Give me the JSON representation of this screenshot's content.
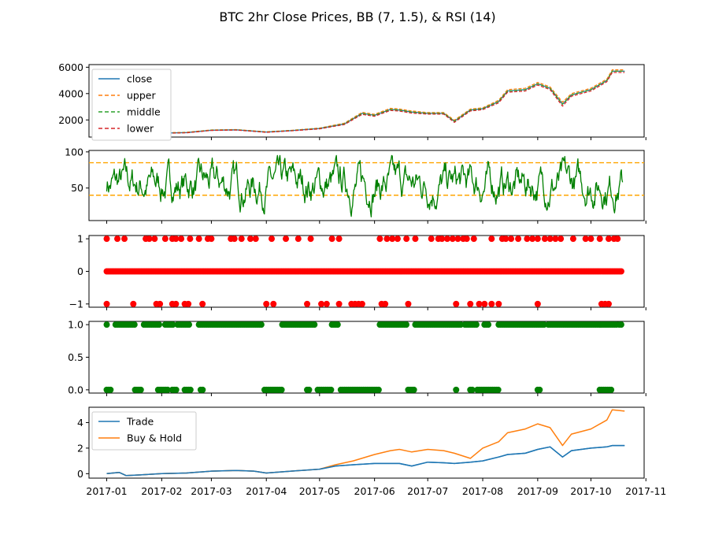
{
  "colors": {
    "close": "#1f77b4",
    "upper": "#ff7f0e",
    "middle": "#2ca02c",
    "lower": "#d62728",
    "rsi": "#008000",
    "threshold": "#ffa500",
    "signal": "#ff0000",
    "position": "#008000",
    "trade": "#1f77b4",
    "buyhold": "#ff7f0e"
  },
  "chart_data": [
    {
      "id": "price",
      "type": "line",
      "title": "BTC 2hr Close Prices, BB (7, 1.5), & RSI (14)",
      "xlim": [
        "2016-12-22",
        "2017-10-31"
      ],
      "ylim": [
        700,
        6200
      ],
      "yticks": [
        2000,
        4000,
        6000
      ],
      "legend": {
        "placement": "top-left",
        "entries": [
          "close",
          "upper",
          "middle",
          "lower"
        ]
      },
      "x": [
        "2017-01-01",
        "2017-01-15",
        "2017-02-01",
        "2017-02-15",
        "2017-03-01",
        "2017-03-15",
        "2017-04-01",
        "2017-04-15",
        "2017-05-01",
        "2017-05-15",
        "2017-05-25",
        "2017-06-01",
        "2017-06-10",
        "2017-06-15",
        "2017-06-22",
        "2017-07-01",
        "2017-07-10",
        "2017-07-16",
        "2017-07-25",
        "2017-08-01",
        "2017-08-10",
        "2017-08-15",
        "2017-08-25",
        "2017-09-01",
        "2017-09-08",
        "2017-09-15",
        "2017-09-20",
        "2017-10-01",
        "2017-10-10",
        "2017-10-13",
        "2017-10-20"
      ],
      "series": [
        {
          "name": "close",
          "values": [
            1000,
            860,
            1000,
            1040,
            1220,
            1250,
            1080,
            1190,
            1350,
            1700,
            2500,
            2350,
            2800,
            2750,
            2600,
            2500,
            2500,
            1900,
            2750,
            2850,
            3400,
            4200,
            4300,
            4750,
            4400,
            3200,
            3900,
            4300,
            5000,
            5700,
            5700
          ]
        },
        {
          "name": "upper",
          "values": [
            1020,
            880,
            1020,
            1060,
            1240,
            1270,
            1100,
            1210,
            1380,
            1750,
            2580,
            2420,
            2880,
            2830,
            2680,
            2560,
            2560,
            1980,
            2820,
            2920,
            3500,
            4300,
            4400,
            4850,
            4500,
            3350,
            4000,
            4400,
            5100,
            5800,
            5800
          ]
        },
        {
          "name": "middle",
          "values": [
            1000,
            860,
            1000,
            1040,
            1220,
            1250,
            1080,
            1190,
            1350,
            1700,
            2500,
            2350,
            2800,
            2750,
            2600,
            2500,
            2500,
            1900,
            2750,
            2850,
            3400,
            4200,
            4300,
            4750,
            4400,
            3200,
            3900,
            4300,
            5000,
            5700,
            5700
          ]
        },
        {
          "name": "lower",
          "values": [
            980,
            840,
            980,
            1020,
            1200,
            1230,
            1060,
            1170,
            1320,
            1650,
            2420,
            2280,
            2720,
            2670,
            2520,
            2440,
            2440,
            1820,
            2680,
            2780,
            3300,
            4100,
            4200,
            4650,
            4300,
            3050,
            3800,
            4200,
            4900,
            5600,
            5600
          ]
        }
      ]
    },
    {
      "id": "rsi",
      "type": "line",
      "xlim": [
        "2016-12-22",
        "2017-10-31"
      ],
      "ylim": [
        5,
        102
      ],
      "yticks": [
        50,
        100
      ],
      "hlines": [
        85,
        40
      ],
      "series": [
        {
          "name": "",
          "style": "oscillating between roughly 10 and 95"
        }
      ]
    },
    {
      "id": "signal",
      "type": "scatter",
      "xlim": [
        "2016-12-22",
        "2017-10-31"
      ],
      "ylim": [
        -1.1,
        1.1
      ],
      "yticks": [
        -1,
        0,
        1
      ],
      "yticklabels": [
        "−1",
        "0",
        "1"
      ],
      "points_up": [
        "2017-01-01",
        "2017-01-07",
        "2017-01-11",
        "2017-01-23",
        "2017-01-25",
        "2017-01-28",
        "2017-02-03",
        "2017-02-07",
        "2017-02-09",
        "2017-02-12",
        "2017-02-17",
        "2017-02-22",
        "2017-02-27",
        "2017-03-01",
        "2017-03-12",
        "2017-03-14",
        "2017-03-18",
        "2017-03-23",
        "2017-03-26",
        "2017-04-04",
        "2017-04-12",
        "2017-04-19",
        "2017-04-26",
        "2017-05-08",
        "2017-05-12",
        "2017-06-04",
        "2017-06-08",
        "2017-06-11",
        "2017-06-14",
        "2017-06-19",
        "2017-06-24",
        "2017-07-03",
        "2017-07-07",
        "2017-07-09",
        "2017-07-12",
        "2017-07-15",
        "2017-07-18",
        "2017-07-21",
        "2017-07-23",
        "2017-07-27",
        "2017-08-06",
        "2017-08-12",
        "2017-08-14",
        "2017-08-17",
        "2017-08-21",
        "2017-08-26",
        "2017-08-29",
        "2017-09-01",
        "2017-09-05",
        "2017-09-08",
        "2017-09-11",
        "2017-09-14",
        "2017-09-21",
        "2017-09-28",
        "2017-10-01",
        "2017-10-06",
        "2017-10-11",
        "2017-10-14",
        "2017-10-16"
      ],
      "points_down": [
        "2017-01-01",
        "2017-01-16",
        "2017-01-29",
        "2017-01-31",
        "2017-02-07",
        "2017-02-09",
        "2017-02-14",
        "2017-02-16",
        "2017-02-24",
        "2017-04-01",
        "2017-04-05",
        "2017-04-24",
        "2017-05-02",
        "2017-05-05",
        "2017-05-12",
        "2017-05-19",
        "2017-05-21",
        "2017-05-23",
        "2017-05-25",
        "2017-06-05",
        "2017-06-07",
        "2017-06-20",
        "2017-07-17",
        "2017-07-25",
        "2017-07-30",
        "2017-08-02",
        "2017-08-06",
        "2017-08-10",
        "2017-09-01",
        "2017-10-07",
        "2017-10-09",
        "2017-10-11"
      ],
      "baseline_value": 0,
      "baseline_range": [
        "2017-01-01",
        "2017-10-19"
      ]
    },
    {
      "id": "position",
      "type": "scatter",
      "xlim": [
        "2016-12-22",
        "2017-10-31"
      ],
      "ylim": [
        -0.05,
        1.05
      ],
      "yticks": [
        0,
        0.5,
        1
      ],
      "yticklabels": [
        "0.0",
        "0.5",
        "1.0"
      ],
      "ones": [
        [
          "2017-01-01",
          "2017-01-02"
        ],
        [
          "2017-01-06",
          "2017-01-17"
        ],
        [
          "2017-01-22",
          "2017-01-31"
        ],
        [
          "2017-02-03",
          "2017-02-08"
        ],
        [
          "2017-02-10",
          "2017-02-17"
        ],
        [
          "2017-02-22",
          "2017-03-30"
        ],
        [
          "2017-04-10",
          "2017-04-29"
        ],
        [
          "2017-05-08",
          "2017-05-12"
        ],
        [
          "2017-06-04",
          "2017-06-19"
        ],
        [
          "2017-06-24",
          "2017-07-20"
        ],
        [
          "2017-07-22",
          "2017-07-29"
        ],
        [
          "2017-08-02",
          "2017-08-05"
        ],
        [
          "2017-08-10",
          "2017-09-05"
        ],
        [
          "2017-09-07",
          "2017-10-16"
        ],
        [
          "2017-10-17",
          "2017-10-19"
        ]
      ],
      "zeros": [
        [
          "2017-01-01",
          "2017-01-04"
        ],
        [
          "2017-01-17",
          "2017-01-21"
        ],
        [
          "2017-01-30",
          "2017-02-05"
        ],
        [
          "2017-02-07",
          "2017-02-10"
        ],
        [
          "2017-02-14",
          "2017-02-18"
        ],
        [
          "2017-02-23",
          "2017-02-25"
        ],
        [
          "2017-03-31",
          "2017-04-10"
        ],
        [
          "2017-04-24",
          "2017-04-26"
        ],
        [
          "2017-04-30",
          "2017-05-08"
        ],
        [
          "2017-05-13",
          "2017-06-04"
        ],
        [
          "2017-06-20",
          "2017-06-24"
        ],
        [
          "2017-07-17",
          "2017-07-18"
        ],
        [
          "2017-07-25",
          "2017-07-27"
        ],
        [
          "2017-07-29",
          "2017-08-10"
        ],
        [
          "2017-09-01",
          "2017-09-03"
        ],
        [
          "2017-10-06",
          "2017-10-13"
        ]
      ]
    },
    {
      "id": "returns",
      "type": "line",
      "xlim": [
        "2016-12-22",
        "2017-10-31"
      ],
      "ylim": [
        -0.35,
        5.2
      ],
      "yticks": [
        0,
        2,
        4
      ],
      "xticks": [
        "2017-01-01",
        "2017-02-01",
        "2017-03-01",
        "2017-04-01",
        "2017-05-01",
        "2017-06-01",
        "2017-07-01",
        "2017-08-01",
        "2017-09-01",
        "2017-10-01",
        "2017-11-01"
      ],
      "xticklabels": [
        "2017-01",
        "2017-02",
        "2017-03",
        "2017-04",
        "2017-05",
        "2017-06",
        "2017-07",
        "2017-08",
        "2017-09",
        "2017-10",
        "2017-11"
      ],
      "legend": {
        "placement": "top-left",
        "entries": [
          "Trade",
          "Buy & Hold"
        ]
      },
      "x": [
        "2017-01-01",
        "2017-01-08",
        "2017-01-12",
        "2017-01-20",
        "2017-02-01",
        "2017-02-15",
        "2017-03-01",
        "2017-03-15",
        "2017-03-25",
        "2017-04-01",
        "2017-04-15",
        "2017-05-01",
        "2017-05-10",
        "2017-05-20",
        "2017-06-01",
        "2017-06-10",
        "2017-06-15",
        "2017-06-22",
        "2017-07-01",
        "2017-07-10",
        "2017-07-16",
        "2017-07-25",
        "2017-08-01",
        "2017-08-10",
        "2017-08-15",
        "2017-08-25",
        "2017-09-01",
        "2017-09-08",
        "2017-09-15",
        "2017-09-20",
        "2017-10-01",
        "2017-10-10",
        "2017-10-13",
        "2017-10-20"
      ],
      "series": [
        {
          "name": "Trade",
          "values": [
            0,
            0.1,
            -0.15,
            -0.1,
            0,
            0.05,
            0.2,
            0.25,
            0.2,
            0.05,
            0.2,
            0.35,
            0.6,
            0.7,
            0.8,
            0.8,
            0.8,
            0.6,
            0.9,
            0.85,
            0.8,
            0.9,
            1.0,
            1.3,
            1.5,
            1.6,
            1.9,
            2.1,
            1.3,
            1.8,
            2.0,
            2.1,
            2.2,
            2.2
          ]
        },
        {
          "name": "Buy & Hold",
          "values": [
            0,
            0.1,
            -0.15,
            -0.1,
            0,
            0.05,
            0.2,
            0.25,
            0.2,
            0.05,
            0.2,
            0.35,
            0.7,
            1.0,
            1.5,
            1.8,
            1.9,
            1.7,
            1.9,
            1.8,
            1.6,
            1.2,
            2.0,
            2.5,
            3.2,
            3.5,
            3.9,
            3.6,
            2.2,
            3.1,
            3.5,
            4.2,
            5.0,
            4.9
          ]
        }
      ]
    }
  ]
}
